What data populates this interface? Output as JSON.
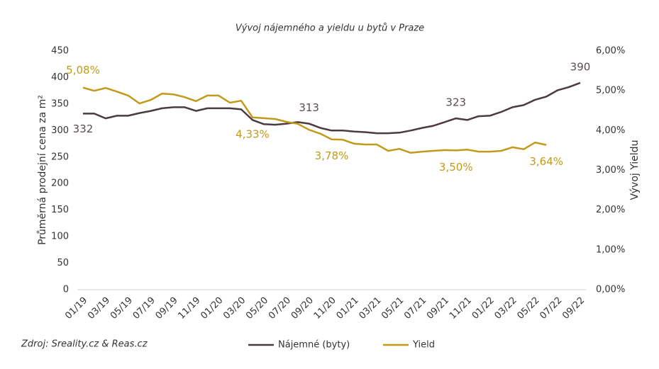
{
  "chart_data": {
    "type": "line",
    "title": "Vývoj nájemného a yieldu u bytů v Praze",
    "ylabel": "Průměrná prodejní cena za m²",
    "y2label": "Vývoj Yieldu",
    "source": "Zdroj: Sreality.cz & Reas.cz",
    "categories": [
      "01/19",
      null,
      "03/19",
      null,
      "05/19",
      null,
      "07/19",
      null,
      "09/19",
      null,
      "11/19",
      null,
      "01/20",
      null,
      "03/20",
      null,
      "05/20",
      null,
      "07/20",
      null,
      "09/20",
      null,
      "11/20",
      null,
      "01/21",
      null,
      "03/21",
      null,
      "05/21",
      null,
      "07/21",
      null,
      "09/21",
      null,
      "11/21",
      null,
      "01/22",
      null,
      "03/22",
      null,
      "05/22",
      null,
      "07/22",
      null,
      "09/22"
    ],
    "ylim": [
      0,
      450
    ],
    "yticks": [
      0,
      50,
      100,
      150,
      200,
      250,
      300,
      350,
      400,
      450
    ],
    "y2lim": [
      0,
      6
    ],
    "y2ticks": [
      {
        "value": 0,
        "label": "0,00%"
      },
      {
        "value": 1,
        "label": "1,00%"
      },
      {
        "value": 2,
        "label": "2,00%"
      },
      {
        "value": 3,
        "label": "3,00%"
      },
      {
        "value": 4,
        "label": "4,00%"
      },
      {
        "value": 5,
        "label": "5,00%"
      },
      {
        "value": 6,
        "label": "6,00%"
      }
    ],
    "legend": "bottom",
    "series": [
      {
        "name": "Nájemné (byty)",
        "color": "#4b3a40",
        "values": [
          332,
          332,
          323,
          328,
          328,
          333,
          337,
          342,
          344,
          344,
          337,
          342,
          342,
          342,
          340,
          320,
          312,
          311,
          313,
          316,
          313,
          305,
          300,
          300,
          298,
          297,
          295,
          295,
          296,
          300,
          305,
          309,
          316,
          323,
          320,
          327,
          328,
          335,
          344,
          348,
          358,
          364,
          376,
          382,
          390
        ],
        "value_labels": [
          "332",
          null,
          null,
          null,
          null,
          null,
          null,
          null,
          null,
          null,
          null,
          null,
          null,
          null,
          null,
          null,
          null,
          null,
          null,
          null,
          "313",
          null,
          null,
          null,
          null,
          null,
          null,
          null,
          null,
          null,
          null,
          null,
          null,
          "323",
          null,
          null,
          null,
          null,
          null,
          null,
          null,
          null,
          null,
          null,
          "390"
        ]
      },
      {
        "name": "Yield",
        "color": "#c29a1a",
        "axis": "y2",
        "values": [
          5.08,
          5.0,
          5.07,
          4.98,
          4.88,
          4.68,
          4.77,
          4.93,
          4.91,
          4.84,
          4.74,
          4.88,
          4.88,
          4.7,
          4.75,
          4.33,
          4.31,
          4.29,
          4.22,
          4.17,
          4.02,
          3.92,
          3.78,
          3.77,
          3.67,
          3.65,
          3.65,
          3.49,
          3.54,
          3.44,
          3.47,
          3.49,
          3.51,
          3.5,
          3.52,
          3.47,
          3.47,
          3.49,
          3.58,
          3.53,
          3.7,
          3.64,
          null,
          null,
          null
        ],
        "value_labels": [
          "5,08%",
          null,
          null,
          null,
          null,
          null,
          null,
          null,
          null,
          null,
          null,
          null,
          null,
          null,
          null,
          "4,33%",
          null,
          null,
          null,
          null,
          null,
          null,
          "3,78%",
          null,
          null,
          null,
          null,
          null,
          null,
          null,
          null,
          null,
          null,
          "3,50%",
          null,
          null,
          null,
          null,
          null,
          null,
          null,
          "3,64%",
          null,
          null,
          null
        ]
      }
    ]
  }
}
